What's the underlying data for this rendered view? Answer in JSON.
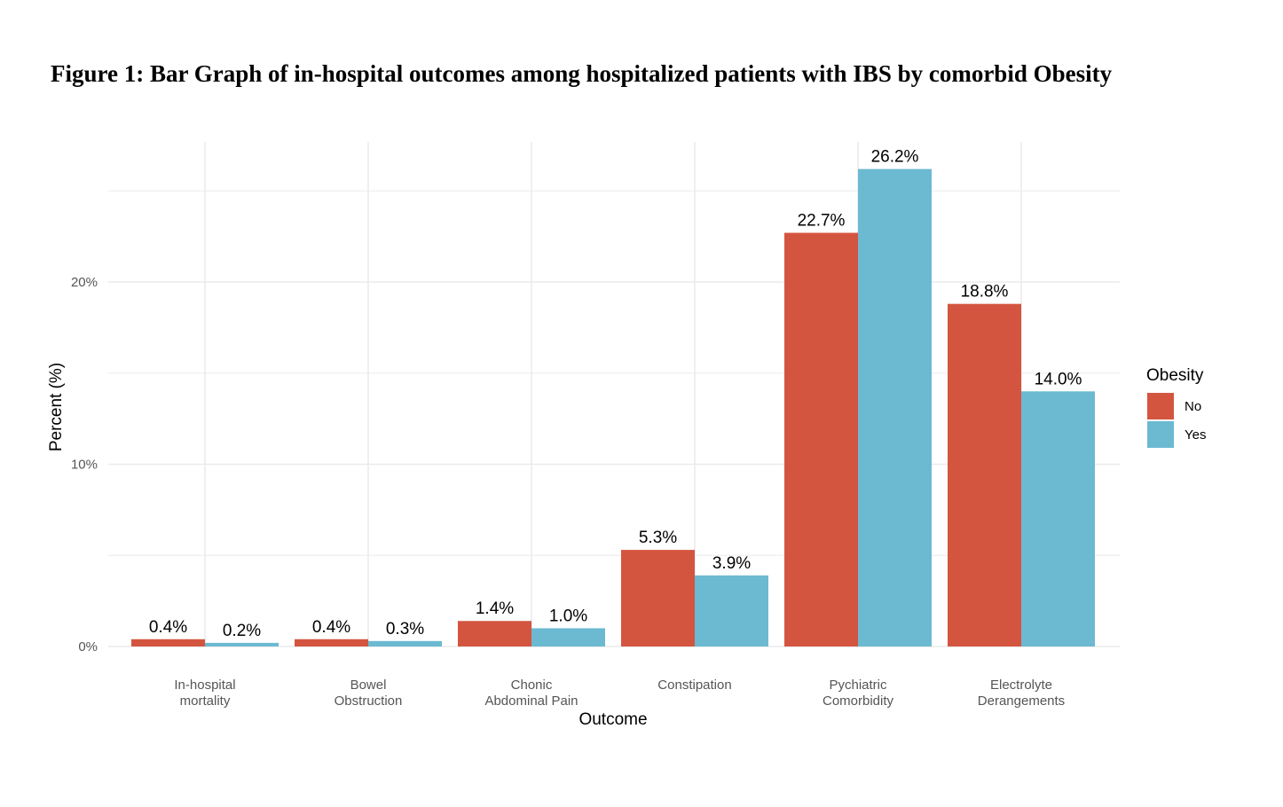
{
  "chart_data": {
    "type": "bar",
    "title": "Figure 1: Bar Graph of in-hospital outcomes among hospitalized patients with IBS by comorbid Obesity",
    "xlabel": "Outcome",
    "ylabel": "Percent (%)",
    "ylim": [
      0,
      27.5
    ],
    "yticks": [
      0,
      10,
      20
    ],
    "ytick_labels": [
      "0%",
      "10%",
      "20%"
    ],
    "grid": true,
    "legend_title": "Obesity",
    "legend_position": "right",
    "categories": [
      [
        "In-hospital",
        "mortality"
      ],
      [
        "Bowel",
        "Obstruction"
      ],
      [
        "Chonic",
        "Abdominal Pain"
      ],
      [
        "Constipation"
      ],
      [
        "Pychiatric",
        "Comorbidity"
      ],
      [
        "Electrolyte",
        "Derangements"
      ]
    ],
    "series": [
      {
        "name": "No",
        "color": "#d4553f",
        "values": [
          0.4,
          0.4,
          1.4,
          5.3,
          22.7,
          18.8
        ],
        "labels": [
          "0.4%",
          "0.4%",
          "1.4%",
          "5.3%",
          "22.7%",
          "18.8%"
        ]
      },
      {
        "name": "Yes",
        "color": "#6cb9d2",
        "values": [
          0.2,
          0.3,
          1.0,
          3.9,
          26.2,
          14.0
        ],
        "labels": [
          "0.2%",
          "0.3%",
          "1.0%",
          "3.9%",
          "26.2%",
          "14.0%"
        ]
      }
    ]
  }
}
